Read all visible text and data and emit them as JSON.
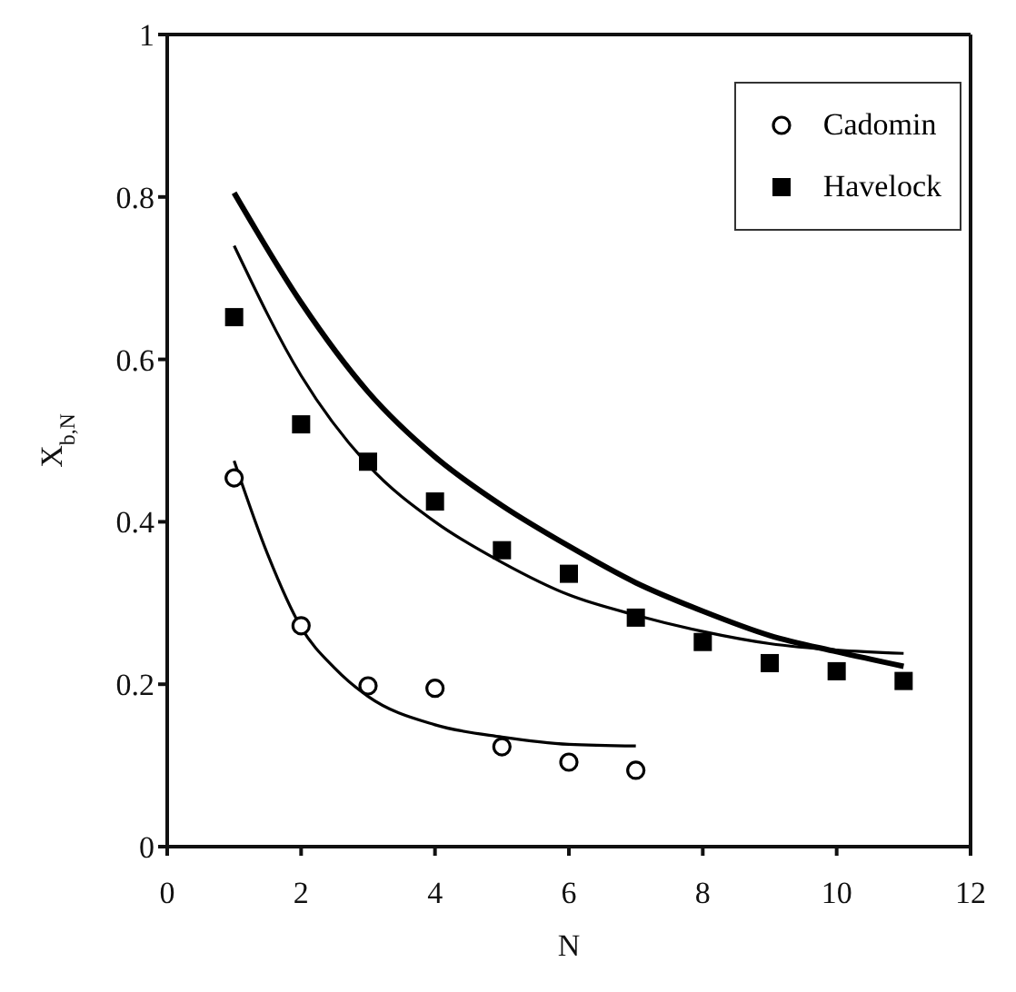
{
  "chart_data": {
    "type": "scatter",
    "xlabel": "N",
    "ylabel": "X$_{b,N}$",
    "xlim": [
      0,
      12
    ],
    "xticks": [
      0,
      2,
      4,
      6,
      8,
      10,
      12
    ],
    "ylim": [
      0,
      1
    ],
    "yticks": [
      0,
      0.2,
      0.4,
      0.6,
      0.8,
      1
    ],
    "legend": "top right",
    "series": [
      {
        "name": "Cadomin",
        "color": "#000000",
        "marker": "circle",
        "x": [
          1,
          2,
          3,
          4,
          5,
          6,
          7
        ],
        "values": [
          0.454,
          0.272,
          0.198,
          0.195,
          0.123,
          0.104,
          0.094
        ]
      },
      {
        "name": "Havelock",
        "color": "#000000",
        "marker": "square",
        "x": [
          1,
          2,
          3,
          4,
          5,
          6,
          7,
          8,
          9,
          10,
          11
        ],
        "values": [
          0.652,
          0.52,
          0.474,
          0.425,
          0.365,
          0.336,
          0.282,
          0.252,
          0.226,
          0.216,
          0.204
        ]
      },
      {
        "type": "line",
        "color": "#000000",
        "marker": "none",
        "x": [
          1,
          2,
          3,
          4,
          5,
          6,
          7,
          8,
          9,
          10,
          11
        ],
        "values": [
          0.805,
          0.67,
          0.56,
          0.48,
          0.42,
          0.37,
          0.325,
          0.29,
          0.26,
          0.24,
          0.222
        ]
      },
      {
        "type": "line",
        "color": "#000000",
        "marker": "none",
        "x": [
          1,
          2,
          3,
          4,
          5,
          6,
          7,
          8,
          9,
          10,
          11
        ],
        "values": [
          0.74,
          0.58,
          0.47,
          0.4,
          0.35,
          0.31,
          0.285,
          0.265,
          0.25,
          0.242,
          0.238
        ]
      },
      {
        "type": "line",
        "color": "#000000",
        "marker": "none",
        "x": [
          1,
          1.5,
          2,
          2.5,
          3,
          4,
          5,
          6,
          7
        ],
        "values": [
          0.475,
          0.36,
          0.27,
          0.22,
          0.185,
          0.15,
          0.135,
          0.126,
          0.124
        ]
      }
    ]
  }
}
